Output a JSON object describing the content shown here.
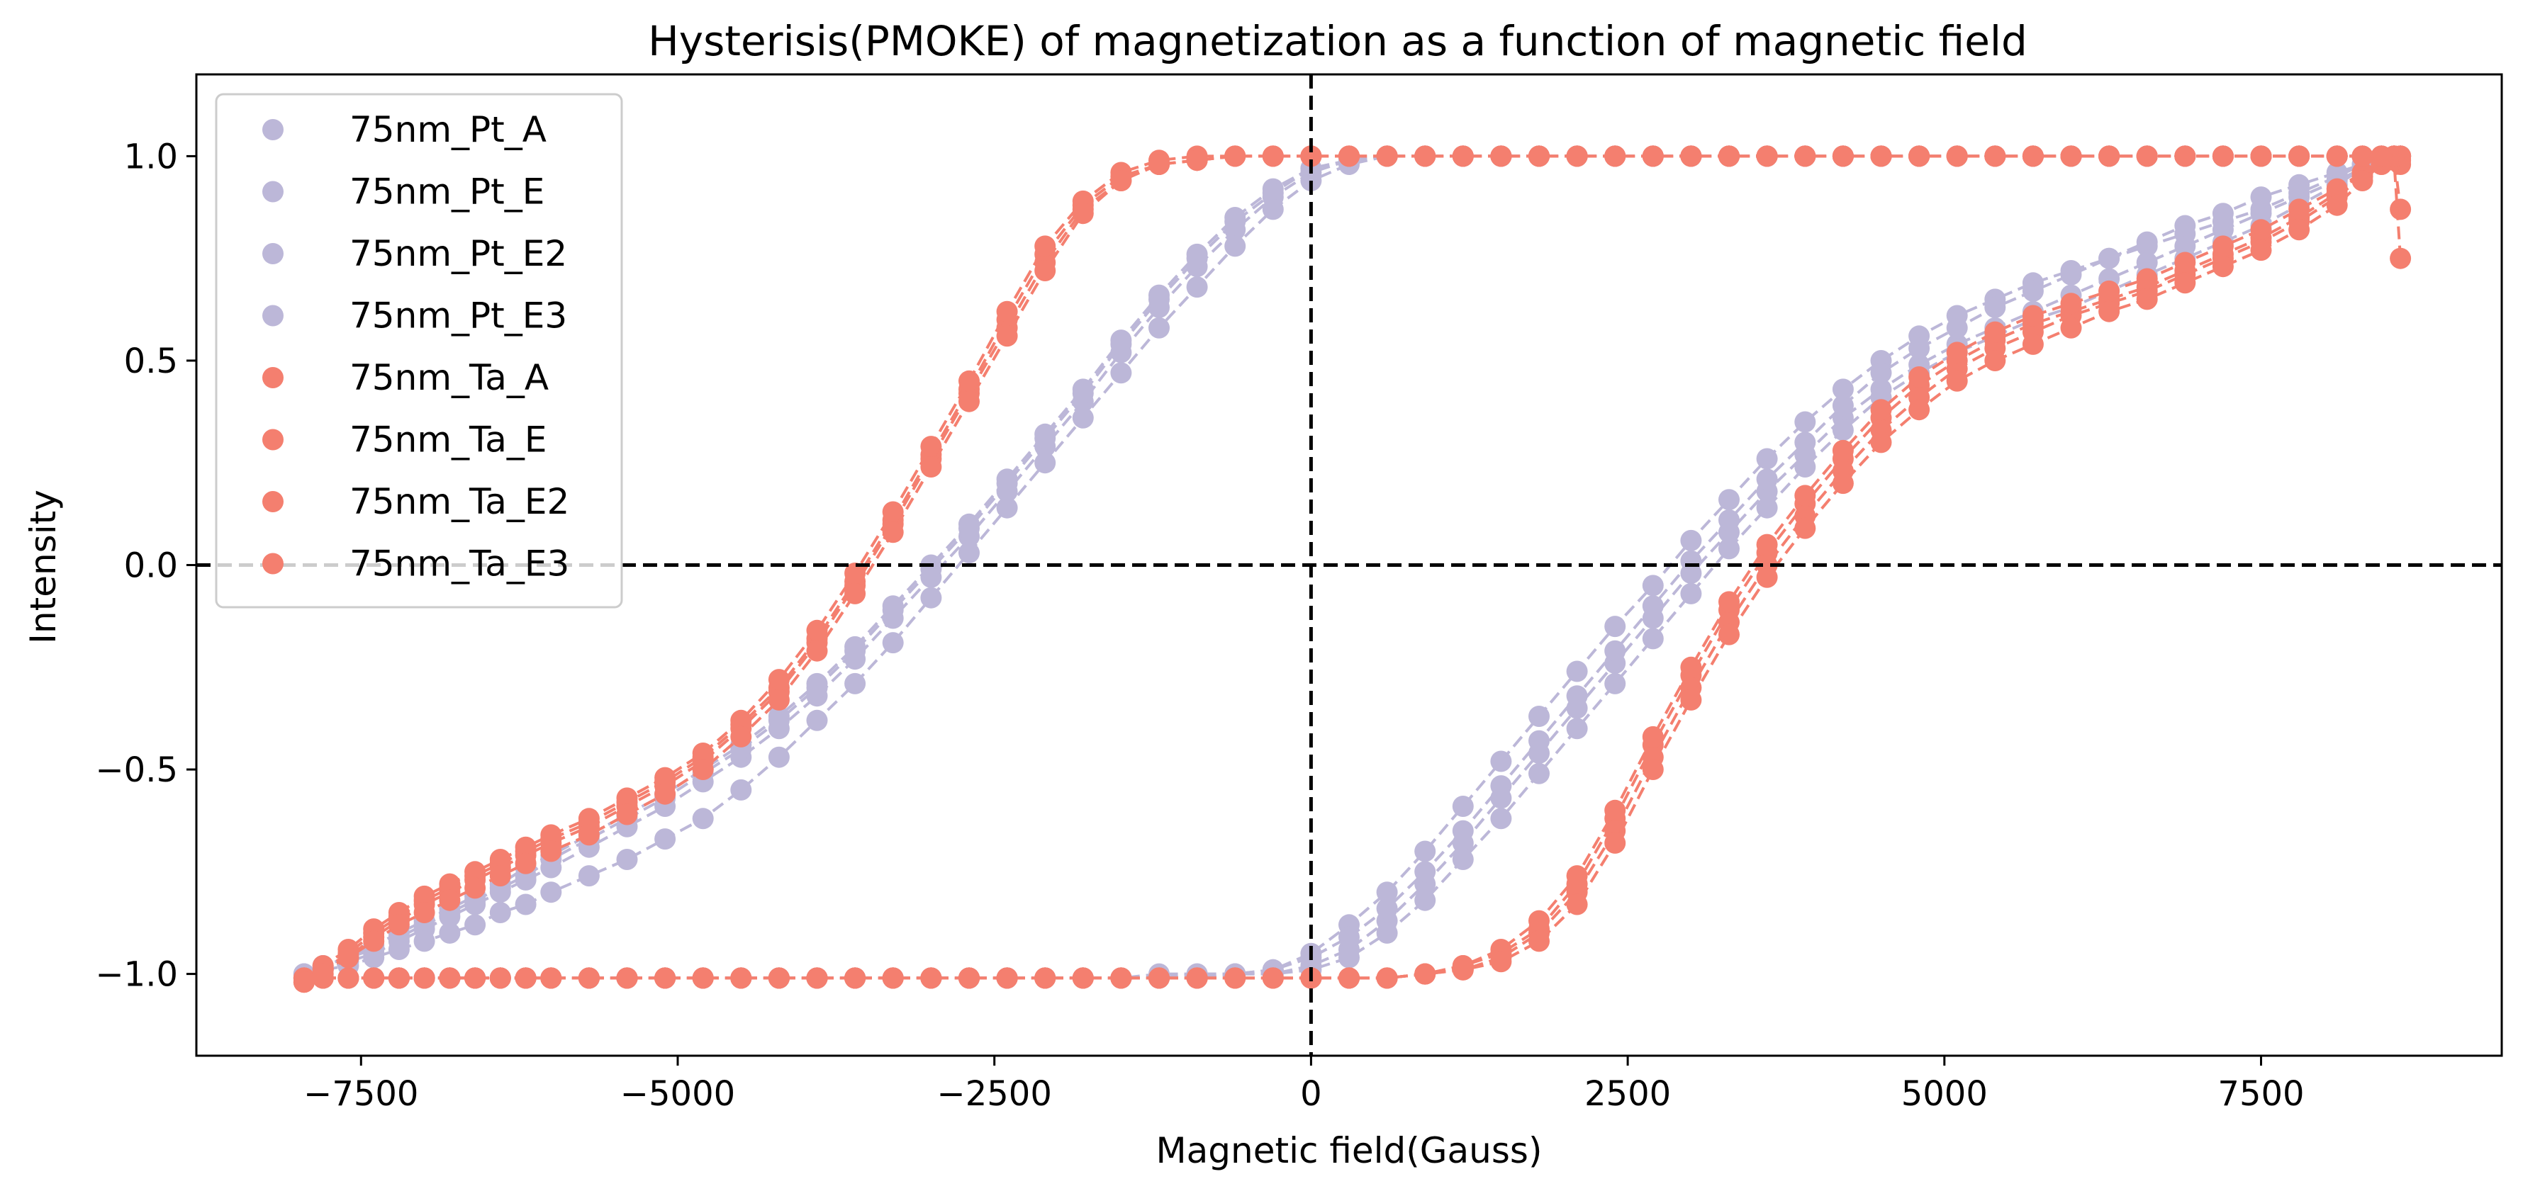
{
  "chart_data": {
    "type": "scatter",
    "title": "Hysterisis(PMOKE) of magnetization as a function of magnetic field",
    "xlabel": "Magnetic field(Gauss)",
    "ylabel": "Intensity",
    "xlim": [
      -8800,
      9400
    ],
    "ylim": [
      -1.2,
      1.2
    ],
    "x_ticks": [
      -7500,
      -5000,
      -2500,
      0,
      2500,
      5000,
      7500
    ],
    "x_tick_labels": [
      "−7500",
      "−5000",
      "−2500",
      "0",
      "2500",
      "5000",
      "7500"
    ],
    "y_ticks": [
      -1.0,
      -0.5,
      0.0,
      0.5,
      1.0
    ],
    "y_tick_labels": [
      "−1.0",
      "−0.5",
      "0.0",
      "0.5",
      "1.0"
    ],
    "grid": false,
    "legend_position": "top-left",
    "reference_lines": [
      {
        "axis": "x",
        "value": 0,
        "style": "dashed",
        "color": "#000000"
      },
      {
        "axis": "y",
        "value": 0,
        "style": "dashed",
        "color": "#000000"
      }
    ],
    "x": [
      -7950,
      -7800,
      -7600,
      -7400,
      -7200,
      -7000,
      -6800,
      -6600,
      -6400,
      -6200,
      -6000,
      -5700,
      -5400,
      -5100,
      -4800,
      -4500,
      -4200,
      -3900,
      -3600,
      -3300,
      -3000,
      -2700,
      -2400,
      -2100,
      -1800,
      -1500,
      -1200,
      -900,
      -600,
      -300,
      0,
      300,
      600,
      900,
      1200,
      1500,
      1800,
      2100,
      2400,
      2700,
      3000,
      3300,
      3600,
      3900,
      4200,
      4500,
      4800,
      5100,
      5400,
      5700,
      6000,
      6300,
      6600,
      6900,
      7200,
      7500,
      7800,
      8100,
      8300,
      8450,
      8550,
      8600
    ],
    "series": [
      {
        "name": "75nm_Pt_A",
        "color": "#bcb7d8",
        "ascending": [
          -1.01,
          -1.01,
          -1.01,
          -1.01,
          -1.01,
          -1.01,
          -1.01,
          -1.01,
          -1.01,
          -1.01,
          -1.01,
          -1.01,
          -1.01,
          -1.01,
          -1.01,
          -1.01,
          -1.01,
          -1.01,
          -1.01,
          -1.01,
          -1.01,
          -1.01,
          -1.01,
          -1.01,
          -1.01,
          -1.01,
          -1.0,
          -1.0,
          -1.0,
          -0.99,
          -0.95,
          -0.88,
          -0.8,
          -0.7,
          -0.59,
          -0.48,
          -0.37,
          -0.26,
          -0.15,
          -0.05,
          0.06,
          0.16,
          0.26,
          0.35,
          0.43,
          0.5,
          0.56,
          0.61,
          0.65,
          0.69,
          0.72,
          0.75,
          0.78,
          0.81,
          0.84,
          0.87,
          0.91,
          0.95,
          0.98,
          0.99,
          1.0,
          1.0
        ],
        "descending": [
          -1.0,
          -0.98,
          -0.96,
          -0.93,
          -0.9,
          -0.87,
          -0.84,
          -0.81,
          -0.78,
          -0.74,
          -0.71,
          -0.66,
          -0.61,
          -0.56,
          -0.5,
          -0.44,
          -0.37,
          -0.29,
          -0.2,
          -0.1,
          0.0,
          0.1,
          0.21,
          0.32,
          0.43,
          0.55,
          0.66,
          0.76,
          0.85,
          0.92,
          0.97,
          0.99,
          1.0,
          1.0,
          1.0,
          1.0,
          1.0,
          1.0,
          1.0,
          1.0,
          1.0,
          1.0,
          1.0,
          1.0,
          1.0,
          1.0,
          1.0,
          1.0,
          1.0,
          1.0,
          1.0,
          1.0,
          1.0,
          1.0,
          1.0,
          1.0,
          1.0,
          1.0,
          1.0,
          1.0,
          1.0,
          1.0
        ]
      },
      {
        "name": "75nm_Pt_E",
        "color": "#bcb7d8",
        "ascending": [
          -1.01,
          -1.01,
          -1.01,
          -1.01,
          -1.01,
          -1.01,
          -1.01,
          -1.01,
          -1.01,
          -1.01,
          -1.01,
          -1.01,
          -1.01,
          -1.01,
          -1.01,
          -1.01,
          -1.01,
          -1.01,
          -1.01,
          -1.01,
          -1.01,
          -1.01,
          -1.01,
          -1.01,
          -1.01,
          -1.01,
          -1.01,
          -1.01,
          -1.0,
          -1.0,
          -0.98,
          -0.94,
          -0.87,
          -0.78,
          -0.68,
          -0.57,
          -0.46,
          -0.35,
          -0.24,
          -0.13,
          -0.02,
          0.08,
          0.18,
          0.27,
          0.36,
          0.43,
          0.49,
          0.54,
          0.58,
          0.62,
          0.66,
          0.7,
          0.74,
          0.78,
          0.82,
          0.86,
          0.9,
          0.94,
          0.97,
          0.99,
          1.0,
          1.0
        ],
        "descending": [
          -1.0,
          -0.99,
          -0.97,
          -0.95,
          -0.92,
          -0.89,
          -0.86,
          -0.83,
          -0.8,
          -0.77,
          -0.74,
          -0.69,
          -0.64,
          -0.59,
          -0.53,
          -0.47,
          -0.4,
          -0.32,
          -0.23,
          -0.13,
          -0.03,
          0.07,
          0.18,
          0.29,
          0.4,
          0.52,
          0.63,
          0.73,
          0.82,
          0.9,
          0.96,
          0.99,
          1.0,
          1.0,
          1.0,
          1.0,
          1.0,
          1.0,
          1.0,
          1.0,
          1.0,
          1.0,
          1.0,
          1.0,
          1.0,
          1.0,
          1.0,
          1.0,
          1.0,
          1.0,
          1.0,
          1.0,
          1.0,
          1.0,
          1.0,
          1.0,
          1.0,
          1.0,
          1.0,
          1.0,
          1.0,
          1.0
        ]
      },
      {
        "name": "75nm_Pt_E2",
        "color": "#bcb7d8",
        "ascending": [
          -1.01,
          -1.01,
          -1.01,
          -1.01,
          -1.01,
          -1.01,
          -1.01,
          -1.01,
          -1.01,
          -1.01,
          -1.01,
          -1.01,
          -1.01,
          -1.01,
          -1.01,
          -1.01,
          -1.01,
          -1.01,
          -1.01,
          -1.01,
          -1.01,
          -1.01,
          -1.01,
          -1.01,
          -1.01,
          -1.01,
          -1.01,
          -1.0,
          -1.0,
          -0.99,
          -0.96,
          -0.91,
          -0.84,
          -0.75,
          -0.65,
          -0.54,
          -0.43,
          -0.32,
          -0.21,
          -0.1,
          0.01,
          0.11,
          0.21,
          0.3,
          0.39,
          0.47,
          0.53,
          0.58,
          0.63,
          0.67,
          0.71,
          0.75,
          0.79,
          0.83,
          0.86,
          0.9,
          0.93,
          0.96,
          0.98,
          0.99,
          1.0,
          1.0
        ],
        "descending": [
          -1.0,
          -0.98,
          -0.96,
          -0.94,
          -0.91,
          -0.88,
          -0.85,
          -0.82,
          -0.79,
          -0.76,
          -0.72,
          -0.67,
          -0.62,
          -0.57,
          -0.51,
          -0.45,
          -0.38,
          -0.3,
          -0.21,
          -0.11,
          -0.01,
          0.09,
          0.2,
          0.31,
          0.42,
          0.54,
          0.65,
          0.75,
          0.84,
          0.91,
          0.97,
          0.99,
          1.0,
          1.0,
          1.0,
          1.0,
          1.0,
          1.0,
          1.0,
          1.0,
          1.0,
          1.0,
          1.0,
          1.0,
          1.0,
          1.0,
          1.0,
          1.0,
          1.0,
          1.0,
          1.0,
          1.0,
          1.0,
          1.0,
          1.0,
          1.0,
          1.0,
          1.0,
          1.0,
          1.0,
          1.0,
          1.0
        ]
      },
      {
        "name": "75nm_Pt_E3",
        "color": "#bcb7d8",
        "ascending": [
          -1.01,
          -1.01,
          -1.01,
          -1.01,
          -1.01,
          -1.01,
          -1.01,
          -1.01,
          -1.01,
          -1.01,
          -1.01,
          -1.01,
          -1.01,
          -1.01,
          -1.01,
          -1.01,
          -1.01,
          -1.01,
          -1.01,
          -1.01,
          -1.01,
          -1.01,
          -1.01,
          -1.01,
          -1.01,
          -1.01,
          -1.01,
          -1.01,
          -1.0,
          -1.0,
          -0.99,
          -0.96,
          -0.9,
          -0.82,
          -0.72,
          -0.62,
          -0.51,
          -0.4,
          -0.29,
          -0.18,
          -0.07,
          0.04,
          0.14,
          0.24,
          0.33,
          0.41,
          0.47,
          0.52,
          0.56,
          0.6,
          0.63,
          0.67,
          0.71,
          0.75,
          0.79,
          0.83,
          0.88,
          0.93,
          0.97,
          0.99,
          1.0,
          1.0
        ],
        "descending": [
          -1.0,
          -0.99,
          -0.98,
          -0.96,
          -0.94,
          -0.92,
          -0.9,
          -0.88,
          -0.85,
          -0.83,
          -0.8,
          -0.76,
          -0.72,
          -0.67,
          -0.62,
          -0.55,
          -0.47,
          -0.38,
          -0.29,
          -0.19,
          -0.08,
          0.03,
          0.14,
          0.25,
          0.36,
          0.47,
          0.58,
          0.68,
          0.78,
          0.87,
          0.94,
          0.98,
          1.0,
          1.0,
          1.0,
          1.0,
          1.0,
          1.0,
          1.0,
          1.0,
          1.0,
          1.0,
          1.0,
          1.0,
          1.0,
          1.0,
          1.0,
          1.0,
          1.0,
          1.0,
          1.0,
          1.0,
          1.0,
          1.0,
          1.0,
          1.0,
          1.0,
          1.0,
          1.0,
          1.0,
          1.0,
          1.0
        ]
      },
      {
        "name": "75nm_Ta_A",
        "color": "#f47f6f",
        "ascending": [
          -1.01,
          -1.01,
          -1.01,
          -1.01,
          -1.01,
          -1.01,
          -1.01,
          -1.01,
          -1.01,
          -1.01,
          -1.01,
          -1.01,
          -1.01,
          -1.01,
          -1.01,
          -1.01,
          -1.01,
          -1.01,
          -1.01,
          -1.01,
          -1.01,
          -1.01,
          -1.01,
          -1.01,
          -1.01,
          -1.01,
          -1.01,
          -1.01,
          -1.01,
          -1.01,
          -1.01,
          -1.01,
          -1.01,
          -1.0,
          -0.98,
          -0.95,
          -0.89,
          -0.78,
          -0.62,
          -0.44,
          -0.27,
          -0.11,
          0.03,
          0.15,
          0.26,
          0.36,
          0.44,
          0.5,
          0.55,
          0.59,
          0.62,
          0.65,
          0.68,
          0.72,
          0.76,
          0.8,
          0.85,
          0.91,
          0.96,
          0.99,
          1.0,
          0.87
        ],
        "descending": [
          -1.02,
          -0.99,
          -0.95,
          -0.9,
          -0.86,
          -0.82,
          -0.79,
          -0.76,
          -0.73,
          -0.7,
          -0.67,
          -0.63,
          -0.58,
          -0.53,
          -0.47,
          -0.39,
          -0.3,
          -0.18,
          -0.04,
          0.11,
          0.27,
          0.43,
          0.6,
          0.76,
          0.88,
          0.95,
          0.98,
          0.99,
          1.0,
          1.0,
          1.0,
          1.0,
          1.0,
          1.0,
          1.0,
          1.0,
          1.0,
          1.0,
          1.0,
          1.0,
          1.0,
          1.0,
          1.0,
          1.0,
          1.0,
          1.0,
          1.0,
          1.0,
          1.0,
          1.0,
          1.0,
          1.0,
          1.0,
          1.0,
          1.0,
          1.0,
          1.0,
          1.0,
          1.0,
          1.0,
          1.0,
          1.0
        ]
      },
      {
        "name": "75nm_Ta_E",
        "color": "#f47f6f",
        "ascending": [
          -1.01,
          -1.01,
          -1.01,
          -1.01,
          -1.01,
          -1.01,
          -1.01,
          -1.01,
          -1.01,
          -1.01,
          -1.01,
          -1.01,
          -1.01,
          -1.01,
          -1.01,
          -1.01,
          -1.01,
          -1.01,
          -1.01,
          -1.01,
          -1.01,
          -1.01,
          -1.01,
          -1.01,
          -1.01,
          -1.01,
          -1.01,
          -1.01,
          -1.01,
          -1.01,
          -1.01,
          -1.01,
          -1.01,
          -1.0,
          -0.99,
          -0.96,
          -0.9,
          -0.8,
          -0.65,
          -0.47,
          -0.3,
          -0.14,
          0.0,
          0.12,
          0.23,
          0.33,
          0.41,
          0.48,
          0.53,
          0.57,
          0.61,
          0.64,
          0.67,
          0.71,
          0.75,
          0.79,
          0.84,
          0.9,
          0.95,
          0.98,
          1.0,
          0.99
        ],
        "descending": [
          -1.02,
          -0.99,
          -0.96,
          -0.91,
          -0.87,
          -0.83,
          -0.8,
          -0.77,
          -0.74,
          -0.71,
          -0.68,
          -0.64,
          -0.59,
          -0.54,
          -0.48,
          -0.4,
          -0.31,
          -0.19,
          -0.05,
          0.1,
          0.26,
          0.42,
          0.58,
          0.74,
          0.87,
          0.94,
          0.98,
          0.99,
          1.0,
          1.0,
          1.0,
          1.0,
          1.0,
          1.0,
          1.0,
          1.0,
          1.0,
          1.0,
          1.0,
          1.0,
          1.0,
          1.0,
          1.0,
          1.0,
          1.0,
          1.0,
          1.0,
          1.0,
          1.0,
          1.0,
          1.0,
          1.0,
          1.0,
          1.0,
          1.0,
          1.0,
          1.0,
          1.0,
          1.0,
          1.0,
          1.0,
          1.0
        ]
      },
      {
        "name": "75nm_Ta_E2",
        "color": "#f47f6f",
        "ascending": [
          -1.01,
          -1.01,
          -1.01,
          -1.01,
          -1.01,
          -1.01,
          -1.01,
          -1.01,
          -1.01,
          -1.01,
          -1.01,
          -1.01,
          -1.01,
          -1.01,
          -1.01,
          -1.01,
          -1.01,
          -1.01,
          -1.01,
          -1.01,
          -1.01,
          -1.01,
          -1.01,
          -1.01,
          -1.01,
          -1.01,
          -1.01,
          -1.01,
          -1.01,
          -1.01,
          -1.01,
          -1.01,
          -1.01,
          -1.0,
          -0.98,
          -0.94,
          -0.87,
          -0.76,
          -0.6,
          -0.42,
          -0.25,
          -0.09,
          0.05,
          0.17,
          0.28,
          0.38,
          0.46,
          0.52,
          0.57,
          0.61,
          0.64,
          0.67,
          0.7,
          0.74,
          0.78,
          0.82,
          0.87,
          0.92,
          0.96,
          0.99,
          1.0,
          0.98
        ],
        "descending": [
          -1.02,
          -0.98,
          -0.94,
          -0.89,
          -0.85,
          -0.81,
          -0.78,
          -0.75,
          -0.72,
          -0.69,
          -0.66,
          -0.62,
          -0.57,
          -0.52,
          -0.46,
          -0.38,
          -0.28,
          -0.16,
          -0.02,
          0.13,
          0.29,
          0.45,
          0.62,
          0.78,
          0.89,
          0.96,
          0.99,
          1.0,
          1.0,
          1.0,
          1.0,
          1.0,
          1.0,
          1.0,
          1.0,
          1.0,
          1.0,
          1.0,
          1.0,
          1.0,
          1.0,
          1.0,
          1.0,
          1.0,
          1.0,
          1.0,
          1.0,
          1.0,
          1.0,
          1.0,
          1.0,
          1.0,
          1.0,
          1.0,
          1.0,
          1.0,
          1.0,
          1.0,
          1.0,
          1.0,
          1.0,
          1.0
        ]
      },
      {
        "name": "75nm_Ta_E3",
        "color": "#f47f6f",
        "ascending": [
          -1.01,
          -1.01,
          -1.01,
          -1.01,
          -1.01,
          -1.01,
          -1.01,
          -1.01,
          -1.01,
          -1.01,
          -1.01,
          -1.01,
          -1.01,
          -1.01,
          -1.01,
          -1.01,
          -1.01,
          -1.01,
          -1.01,
          -1.01,
          -1.01,
          -1.01,
          -1.01,
          -1.01,
          -1.01,
          -1.01,
          -1.01,
          -1.01,
          -1.01,
          -1.01,
          -1.01,
          -1.01,
          -1.01,
          -1.0,
          -0.99,
          -0.97,
          -0.92,
          -0.83,
          -0.68,
          -0.5,
          -0.33,
          -0.17,
          -0.03,
          0.09,
          0.2,
          0.3,
          0.38,
          0.45,
          0.5,
          0.54,
          0.58,
          0.62,
          0.65,
          0.69,
          0.73,
          0.77,
          0.82,
          0.88,
          0.94,
          0.98,
          0.99,
          0.75
        ],
        "descending": [
          -1.02,
          -1.0,
          -0.96,
          -0.92,
          -0.88,
          -0.85,
          -0.82,
          -0.79,
          -0.76,
          -0.73,
          -0.7,
          -0.66,
          -0.61,
          -0.56,
          -0.5,
          -0.42,
          -0.33,
          -0.21,
          -0.07,
          0.08,
          0.24,
          0.4,
          0.56,
          0.72,
          0.86,
          0.94,
          0.98,
          0.99,
          1.0,
          1.0,
          1.0,
          1.0,
          1.0,
          1.0,
          1.0,
          1.0,
          1.0,
          1.0,
          1.0,
          1.0,
          1.0,
          1.0,
          1.0,
          1.0,
          1.0,
          1.0,
          1.0,
          1.0,
          1.0,
          1.0,
          1.0,
          1.0,
          1.0,
          1.0,
          1.0,
          1.0,
          1.0,
          1.0,
          1.0,
          1.0,
          1.0,
          1.0
        ]
      }
    ]
  }
}
